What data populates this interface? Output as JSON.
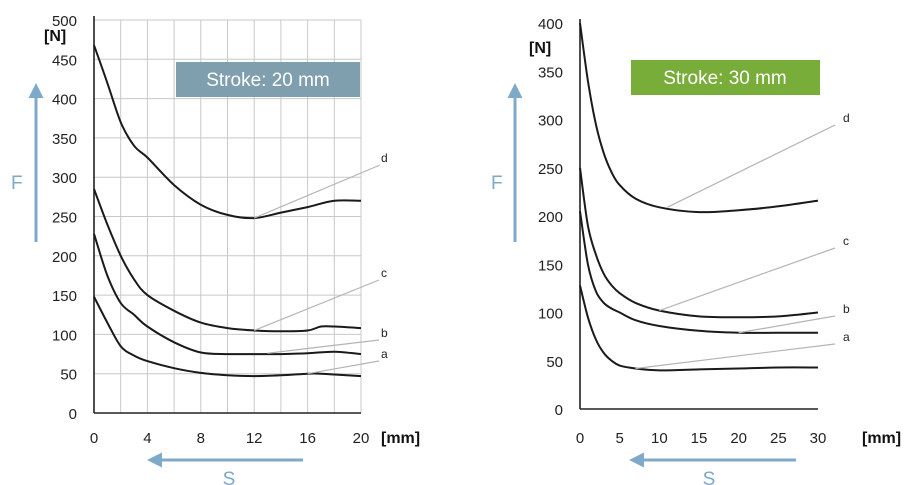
{
  "colors": {
    "curve": "#1a1a1a",
    "grid": "#c8c8c8",
    "leader": "#b4b4b4",
    "arrow": "#7fa9c8",
    "badge_left": "#7f9fae",
    "badge_right": "#79ad3a"
  },
  "chart_data": [
    {
      "type": "line",
      "title": "Stroke: 20 mm",
      "x_unit": "[mm]",
      "y_unit": "[N]",
      "ylabel": "F",
      "xlabel": "S",
      "xlim": [
        0,
        20
      ],
      "ylim": [
        0,
        500
      ],
      "x_ticks": [
        0,
        4,
        8,
        12,
        16,
        20
      ],
      "y_ticks": [
        0,
        50,
        100,
        150,
        200,
        250,
        300,
        350,
        400,
        450,
        500
      ],
      "grid": true,
      "series": [
        {
          "name": "a",
          "points": [
            [
              0,
              148
            ],
            [
              1,
              115
            ],
            [
              2,
              85
            ],
            [
              3,
              73
            ],
            [
              4,
              66
            ],
            [
              6,
              57
            ],
            [
              8,
              51
            ],
            [
              10,
              48
            ],
            [
              12,
              47
            ],
            [
              14,
              48
            ],
            [
              16,
              50
            ],
            [
              17,
              50
            ],
            [
              18,
              49
            ],
            [
              20,
              47
            ]
          ]
        },
        {
          "name": "b",
          "points": [
            [
              0,
              228
            ],
            [
              1,
              175
            ],
            [
              2,
              140
            ],
            [
              3,
              125
            ],
            [
              4,
              110
            ],
            [
              6,
              90
            ],
            [
              8,
              77
            ],
            [
              10,
              75
            ],
            [
              12,
              75
            ],
            [
              14,
              75
            ],
            [
              16,
              76
            ],
            [
              18,
              78
            ],
            [
              20,
              75
            ]
          ]
        },
        {
          "name": "c",
          "points": [
            [
              0,
              285
            ],
            [
              1,
              240
            ],
            [
              2,
              200
            ],
            [
              3,
              170
            ],
            [
              4,
              150
            ],
            [
              6,
              130
            ],
            [
              8,
              115
            ],
            [
              10,
              108
            ],
            [
              12,
              105
            ],
            [
              14,
              104
            ],
            [
              16,
              105
            ],
            [
              17,
              110
            ],
            [
              18,
              110
            ],
            [
              20,
              108
            ]
          ]
        },
        {
          "name": "d",
          "points": [
            [
              0,
              468
            ],
            [
              1,
              420
            ],
            [
              2,
              370
            ],
            [
              3,
              340
            ],
            [
              4,
              325
            ],
            [
              6,
              290
            ],
            [
              8,
              265
            ],
            [
              10,
              252
            ],
            [
              12,
              248
            ],
            [
              14,
              255
            ],
            [
              16,
              262
            ],
            [
              18,
              270
            ],
            [
              20,
              270
            ]
          ]
        }
      ]
    },
    {
      "type": "line",
      "title": "Stroke: 30 mm",
      "x_unit": "[mm]",
      "y_unit": "[N]",
      "ylabel": "F",
      "xlabel": "S",
      "xlim": [
        0,
        30
      ],
      "ylim": [
        0,
        400
      ],
      "x_ticks": [
        0,
        5,
        10,
        15,
        20,
        25,
        30
      ],
      "y_ticks": [
        0,
        50,
        100,
        150,
        200,
        250,
        300,
        350,
        400
      ],
      "grid": false,
      "series": [
        {
          "name": "a",
          "points": [
            [
              0,
              128
            ],
            [
              1,
              95
            ],
            [
              2,
              72
            ],
            [
              3,
              58
            ],
            [
              4,
              50
            ],
            [
              5,
              45
            ],
            [
              7,
              42
            ],
            [
              10,
              40
            ],
            [
              15,
              41
            ],
            [
              20,
              42
            ],
            [
              25,
              43
            ],
            [
              30,
              43
            ]
          ]
        },
        {
          "name": "b",
          "points": [
            [
              0,
              205
            ],
            [
              1,
              150
            ],
            [
              2,
              122
            ],
            [
              3,
              110
            ],
            [
              4,
              104
            ],
            [
              5,
              100
            ],
            [
              7,
              92
            ],
            [
              10,
              86
            ],
            [
              15,
              81
            ],
            [
              20,
              79
            ],
            [
              25,
              79
            ],
            [
              30,
              79
            ]
          ]
        },
        {
          "name": "c",
          "points": [
            [
              0,
              250
            ],
            [
              1,
              190
            ],
            [
              2,
              160
            ],
            [
              3,
              140
            ],
            [
              4,
              128
            ],
            [
              5,
              120
            ],
            [
              7,
              110
            ],
            [
              10,
              102
            ],
            [
              15,
              96
            ],
            [
              20,
              95
            ],
            [
              25,
              96
            ],
            [
              30,
              100
            ]
          ]
        },
        {
          "name": "d",
          "points": [
            [
              0,
              400
            ],
            [
              1,
              340
            ],
            [
              2,
              295
            ],
            [
              3,
              265
            ],
            [
              4,
              245
            ],
            [
              5,
              232
            ],
            [
              7,
              218
            ],
            [
              10,
              209
            ],
            [
              15,
              204
            ],
            [
              20,
              206
            ],
            [
              25,
              210
            ],
            [
              30,
              216
            ]
          ]
        }
      ]
    }
  ]
}
